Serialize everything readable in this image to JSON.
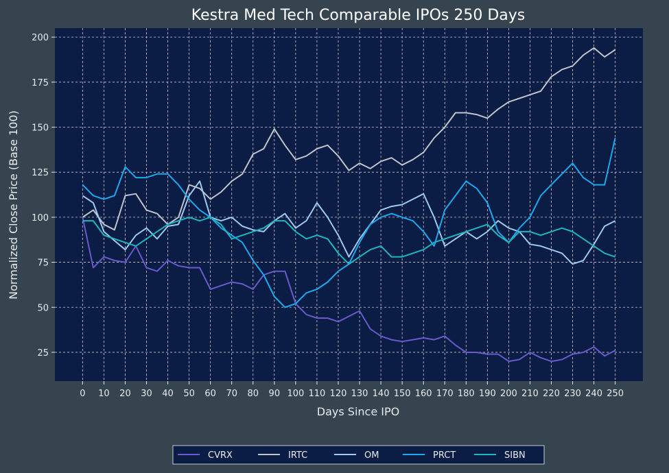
{
  "chart_data": {
    "type": "line",
    "title": "Kestra Med Tech Comparable IPOs 250 Days",
    "xlabel": "Days Since IPO",
    "ylabel": "Normalized Close Price (Base 100)",
    "xlim": [
      -13,
      263
    ],
    "ylim": [
      9,
      205
    ],
    "xticks": [
      "0",
      "10",
      "20",
      "30",
      "40",
      "50",
      "60",
      "70",
      "80",
      "90",
      "100",
      "110",
      "120",
      "130",
      "140",
      "150",
      "160",
      "170",
      "180",
      "190",
      "200",
      "210",
      "220",
      "230",
      "240",
      "250"
    ],
    "yticks": [
      "25",
      "50",
      "75",
      "100",
      "125",
      "150",
      "175",
      "200"
    ],
    "grid": true,
    "legend_position": "bottom",
    "x": [
      0,
      5,
      10,
      15,
      20,
      25,
      30,
      35,
      40,
      45,
      50,
      55,
      60,
      65,
      70,
      75,
      80,
      85,
      90,
      95,
      100,
      105,
      110,
      115,
      120,
      125,
      130,
      135,
      140,
      145,
      150,
      155,
      160,
      165,
      170,
      175,
      180,
      185,
      190,
      195,
      200,
      205,
      210,
      215,
      220,
      225,
      230,
      235,
      240,
      245,
      250
    ],
    "series": [
      {
        "name": "CVRX",
        "color": "#6a5acd",
        "values": [
          100,
          72,
          78,
          76,
          75,
          84,
          72,
          70,
          76,
          73,
          72,
          72,
          60,
          62,
          64,
          63,
          60,
          68,
          70,
          70,
          52,
          46,
          44,
          44,
          42,
          45,
          48,
          38,
          34,
          32,
          31,
          32,
          33,
          32,
          34,
          29,
          25,
          25,
          24,
          24,
          20,
          21,
          25,
          22,
          20,
          21,
          24,
          25,
          28,
          23,
          26
        ]
      },
      {
        "name": "IRTC",
        "color": "#c0c4cc",
        "values": [
          100,
          104,
          96,
          93,
          112,
          113,
          104,
          102,
          96,
          100,
          118,
          116,
          110,
          114,
          120,
          124,
          135,
          138,
          149,
          140,
          132,
          134,
          138,
          140,
          134,
          126,
          130,
          127,
          131,
          133,
          129,
          132,
          136,
          144,
          150,
          158,
          158,
          157,
          155,
          160,
          164,
          166,
          168,
          170,
          178,
          182,
          184,
          190,
          194,
          189,
          193
        ]
      },
      {
        "name": "OM",
        "color": "#9fcaf0",
        "values": [
          112,
          108,
          92,
          87,
          82,
          90,
          94,
          88,
          95,
          96,
          112,
          120,
          100,
          98,
          100,
          95,
          93,
          92,
          98,
          102,
          94,
          98,
          108,
          100,
          90,
          78,
          88,
          96,
          104,
          106,
          107,
          110,
          113,
          100,
          84,
          88,
          92,
          88,
          92,
          98,
          94,
          92,
          85,
          84,
          82,
          80,
          74,
          76,
          85,
          95,
          98
        ]
      },
      {
        "name": "PRCT",
        "color": "#1aaaf0",
        "values": [
          118,
          112,
          110,
          112,
          128,
          122,
          122,
          124,
          124,
          118,
          110,
          104,
          100,
          94,
          90,
          86,
          76,
          68,
          56,
          50,
          52,
          58,
          60,
          64,
          70,
          74,
          86,
          96,
          100,
          102,
          100,
          98,
          92,
          84,
          104,
          112,
          120,
          116,
          108,
          92,
          86,
          94,
          100,
          112,
          118,
          124,
          130,
          122,
          118,
          118,
          144
        ]
      },
      {
        "name": "SIBN",
        "color": "#1ab8c0",
        "values": [
          98,
          98,
          90,
          88,
          86,
          84,
          88,
          92,
          96,
          98,
          100,
          98,
          100,
          96,
          88,
          90,
          92,
          94,
          98,
          98,
          92,
          88,
          90,
          88,
          80,
          74,
          78,
          82,
          84,
          78,
          78,
          80,
          82,
          86,
          88,
          90,
          92,
          94,
          96,
          90,
          86,
          92,
          92,
          90,
          92,
          94,
          92,
          88,
          84,
          80,
          78
        ]
      }
    ]
  }
}
